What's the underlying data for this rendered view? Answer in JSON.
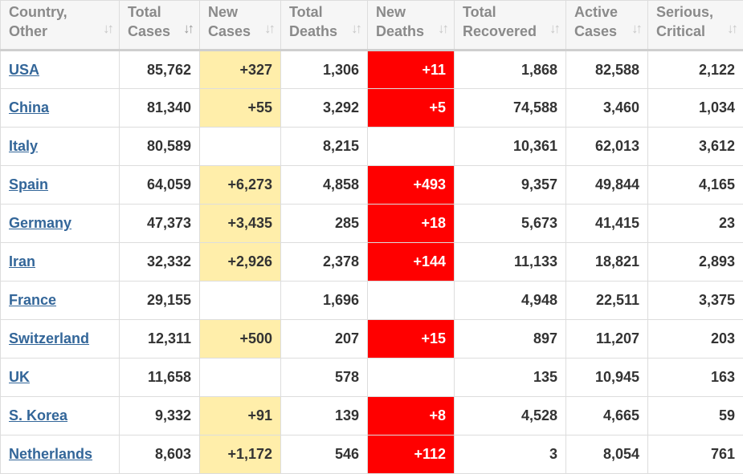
{
  "headers": [
    {
      "line1": "Country,",
      "line2": "Other",
      "sort_icon": "sort-arrows-icon"
    },
    {
      "line1": "Total",
      "line2": "Cases",
      "sort_icon": "sort-desc-icon"
    },
    {
      "line1": "New",
      "line2": "Cases",
      "sort_icon": "sort-arrows-icon"
    },
    {
      "line1": "Total",
      "line2": "Deaths",
      "sort_icon": "sort-arrows-icon"
    },
    {
      "line1": "New",
      "line2": "Deaths",
      "sort_icon": "sort-arrows-icon"
    },
    {
      "line1": "Total",
      "line2": "Recovered",
      "sort_icon": "sort-arrows-icon"
    },
    {
      "line1": "Active",
      "line2": "Cases",
      "sort_icon": "sort-arrows-icon"
    },
    {
      "line1": "Serious,",
      "line2": "Critical",
      "sort_icon": "sort-arrows-icon"
    }
  ],
  "colors": {
    "new_cases_bg": "#ffeeaa",
    "new_deaths_bg": "#ff0000",
    "link": "#336699"
  },
  "rows": [
    {
      "country": "USA",
      "total_cases": "85,762",
      "new_cases": "+327",
      "total_deaths": "1,306",
      "new_deaths": "+11",
      "total_recovered": "1,868",
      "active_cases": "82,588",
      "serious_critical": "2,122"
    },
    {
      "country": "China",
      "total_cases": "81,340",
      "new_cases": "+55",
      "total_deaths": "3,292",
      "new_deaths": "+5",
      "total_recovered": "74,588",
      "active_cases": "3,460",
      "serious_critical": "1,034"
    },
    {
      "country": "Italy",
      "total_cases": "80,589",
      "new_cases": "",
      "total_deaths": "8,215",
      "new_deaths": "",
      "total_recovered": "10,361",
      "active_cases": "62,013",
      "serious_critical": "3,612"
    },
    {
      "country": "Spain",
      "total_cases": "64,059",
      "new_cases": "+6,273",
      "total_deaths": "4,858",
      "new_deaths": "+493",
      "total_recovered": "9,357",
      "active_cases": "49,844",
      "serious_critical": "4,165"
    },
    {
      "country": "Germany",
      "total_cases": "47,373",
      "new_cases": "+3,435",
      "total_deaths": "285",
      "new_deaths": "+18",
      "total_recovered": "5,673",
      "active_cases": "41,415",
      "serious_critical": "23"
    },
    {
      "country": "Iran",
      "total_cases": "32,332",
      "new_cases": "+2,926",
      "total_deaths": "2,378",
      "new_deaths": "+144",
      "total_recovered": "11,133",
      "active_cases": "18,821",
      "serious_critical": "2,893"
    },
    {
      "country": "France",
      "total_cases": "29,155",
      "new_cases": "",
      "total_deaths": "1,696",
      "new_deaths": "",
      "total_recovered": "4,948",
      "active_cases": "22,511",
      "serious_critical": "3,375"
    },
    {
      "country": "Switzerland",
      "total_cases": "12,311",
      "new_cases": "+500",
      "total_deaths": "207",
      "new_deaths": "+15",
      "total_recovered": "897",
      "active_cases": "11,207",
      "serious_critical": "203"
    },
    {
      "country": "UK",
      "total_cases": "11,658",
      "new_cases": "",
      "total_deaths": "578",
      "new_deaths": "",
      "total_recovered": "135",
      "active_cases": "10,945",
      "serious_critical": "163"
    },
    {
      "country": "S. Korea",
      "total_cases": "9,332",
      "new_cases": "+91",
      "total_deaths": "139",
      "new_deaths": "+8",
      "total_recovered": "4,528",
      "active_cases": "4,665",
      "serious_critical": "59"
    },
    {
      "country": "Netherlands",
      "total_cases": "8,603",
      "new_cases": "+1,172",
      "total_deaths": "546",
      "new_deaths": "+112",
      "total_recovered": "3",
      "active_cases": "8,054",
      "serious_critical": "761"
    }
  ]
}
